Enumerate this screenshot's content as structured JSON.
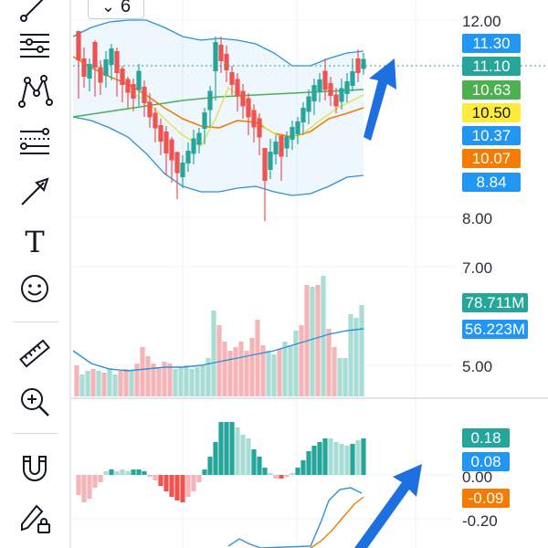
{
  "toolbar": {
    "tools": [
      {
        "name": "trend-line-icon"
      },
      {
        "name": "horizontal-lines-icon"
      },
      {
        "name": "pattern-icon"
      },
      {
        "name": "fib-retracement-icon"
      },
      {
        "name": "arrow-icon"
      },
      {
        "name": "text-icon",
        "glyph": "T"
      },
      {
        "name": "emoji-icon"
      },
      {
        "name": "ruler-icon"
      },
      {
        "name": "zoom-in-icon"
      },
      {
        "name": "magnet-icon"
      },
      {
        "name": "lock-drawings-icon"
      }
    ]
  },
  "interval": {
    "chevron": "⌄",
    "value": "6"
  },
  "price_axis": {
    "labels": [
      "12.00",
      "8.00",
      "7.00",
      "5.00",
      "0.00",
      "-0.20"
    ],
    "badges": [
      {
        "text": "11.30",
        "color": "#2196f3"
      },
      {
        "text": "11.10",
        "color": "#26a69a"
      },
      {
        "text": "10.63",
        "color": "#4caf50"
      },
      {
        "text": "10.50",
        "color": "#ffeb3b",
        "text_color": "#131722"
      },
      {
        "text": "10.37",
        "color": "#2196f3"
      },
      {
        "text": "10.07",
        "color": "#f57c00"
      },
      {
        "text": "8.84",
        "color": "#2196f3"
      }
    ],
    "volume_badges": [
      {
        "text": "78.711M",
        "color": "#26a69a"
      },
      {
        "text": "56.223M",
        "color": "#2196f3"
      }
    ],
    "macd_badges": [
      {
        "text": "0.18",
        "color": "#26a69a"
      },
      {
        "text": "0.08",
        "color": "#2196f3"
      },
      {
        "text": "-0.09",
        "color": "#f57c00"
      }
    ]
  },
  "colors": {
    "up": "#26a69a",
    "down": "#ef5350",
    "up_light": "#a8ddd5",
    "down_light": "#f5b5b8",
    "bollinger": "#2b90d9",
    "ma_orange": "#f57c00",
    "ma_green": "#4caf50",
    "ma_yellow": "#e8e04a",
    "annotation_arrow": "#1e6fe0"
  }
}
